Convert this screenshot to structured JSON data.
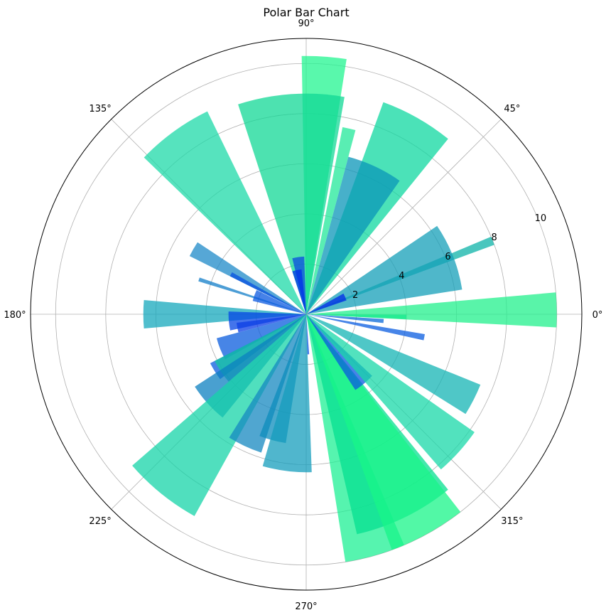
{
  "chart_data": {
    "type": "polar-bar",
    "title": "Polar Bar Chart",
    "radial_range": [
      0,
      11
    ],
    "radial_ticks": [
      "2",
      "4",
      "6",
      "8",
      "10"
    ],
    "radial_tick_values": [
      2,
      4,
      6,
      8,
      10
    ],
    "angular_ticks": [
      "0°",
      "45°",
      "90°",
      "135°",
      "180°",
      "225°",
      "270°",
      "315°"
    ],
    "angular_tick_values": [
      0,
      45,
      90,
      135,
      180,
      225,
      270,
      315
    ],
    "grid": true,
    "colormap": "winter",
    "bars": [
      {
        "theta": 1.0,
        "width": 8.0,
        "radius": 10.0,
        "color": "#22f08c"
      },
      {
        "theta": 358.5,
        "width": 2.5,
        "radius": 4.0,
        "color": "#17ea8e"
      },
      {
        "theta": 21.5,
        "width": 2.5,
        "radius": 8.0,
        "color": "#0db3a8"
      },
      {
        "theta": 21.5,
        "width": 25.0,
        "radius": 6.3,
        "color": "#149fb8"
      },
      {
        "theta": 24.0,
        "width": 10.0,
        "radius": 1.7,
        "color": "#002ae8"
      },
      {
        "theta": 60.5,
        "width": 19.0,
        "radius": 9.0,
        "color": "#0fd8a0"
      },
      {
        "theta": 65.0,
        "width": 20.0,
        "radius": 6.5,
        "color": "#0995b8"
      },
      {
        "theta": 77.0,
        "width": 4.0,
        "radius": 7.6,
        "color": "#22e89a"
      },
      {
        "theta": 86.0,
        "width": 10.0,
        "radius": 10.3,
        "color": "#22f590"
      },
      {
        "theta": 94.0,
        "width": 28.0,
        "radius": 8.8,
        "color": "#12d896"
      },
      {
        "theta": 98.0,
        "width": 12.0,
        "radius": 2.3,
        "color": "#0a4ae0"
      },
      {
        "theta": 102.0,
        "width": 12.0,
        "radius": 1.8,
        "color": "#0030ea"
      },
      {
        "theta": 126.0,
        "width": 20.0,
        "radius": 9.0,
        "color": "#1edaa8"
      },
      {
        "theta": 150.0,
        "width": 7.0,
        "radius": 5.2,
        "color": "#1e8ac8"
      },
      {
        "theta": 152.0,
        "width": 3.0,
        "radius": 3.4,
        "color": "#0850e0"
      },
      {
        "theta": 162.0,
        "width": 2.0,
        "radius": 4.5,
        "color": "#127ec8"
      },
      {
        "theta": 160.0,
        "width": 12.0,
        "radius": 2.2,
        "color": "#0a58e0"
      },
      {
        "theta": 180.0,
        "width": 10.0,
        "radius": 6.5,
        "color": "#16a8bc"
      },
      {
        "theta": 185.0,
        "width": 14.0,
        "radius": 3.1,
        "color": "#0646e4"
      },
      {
        "theta": 191.0,
        "width": 8.0,
        "radius": 2.8,
        "color": "#0b3ee6"
      },
      {
        "theta": 202.0,
        "width": 14.0,
        "radius": 3.7,
        "color": "#0a5cde"
      },
      {
        "theta": 212.0,
        "width": 10.0,
        "radius": 4.3,
        "color": "#0a5cde"
      },
      {
        "theta": 214.0,
        "width": 14.0,
        "radius": 4.1,
        "color": "#14c8a2"
      },
      {
        "theta": 222.0,
        "width": 18.0,
        "radius": 5.3,
        "color": "#0c80c0"
      },
      {
        "theta": 231.0,
        "width": 20.0,
        "radius": 9.2,
        "color": "#16d4a8"
      },
      {
        "theta": 245.0,
        "width": 14.0,
        "radius": 5.8,
        "color": "#1688c0"
      },
      {
        "theta": 255.0,
        "width": 12.0,
        "radius": 5.2,
        "color": "#0c8cbc"
      },
      {
        "theta": 263.0,
        "width": 18.0,
        "radius": 6.3,
        "color": "#169ebc"
      },
      {
        "theta": 273.0,
        "width": 2.5,
        "radius": 1.6,
        "color": "#0a50e4"
      },
      {
        "theta": 286.0,
        "width": 14.0,
        "radius": 10.0,
        "color": "#1ef094"
      },
      {
        "theta": 296.0,
        "width": 26.0,
        "radius": 9.0,
        "color": "#06e090"
      },
      {
        "theta": 299.0,
        "width": 18.0,
        "radius": 10.0,
        "color": "#18f588"
      },
      {
        "theta": 310.0,
        "width": 14.0,
        "radius": 3.6,
        "color": "#0a58e0"
      },
      {
        "theta": 318.0,
        "width": 14.0,
        "radius": 8.2,
        "color": "#18d8a8"
      },
      {
        "theta": 333.0,
        "width": 10.0,
        "radius": 7.5,
        "color": "#14b4b4"
      },
      {
        "theta": 349.0,
        "width": 3.0,
        "radius": 4.8,
        "color": "#0a5ce0"
      },
      {
        "theta": 355.0,
        "width": 3.0,
        "radius": 3.1,
        "color": "#0a68d8"
      }
    ]
  }
}
